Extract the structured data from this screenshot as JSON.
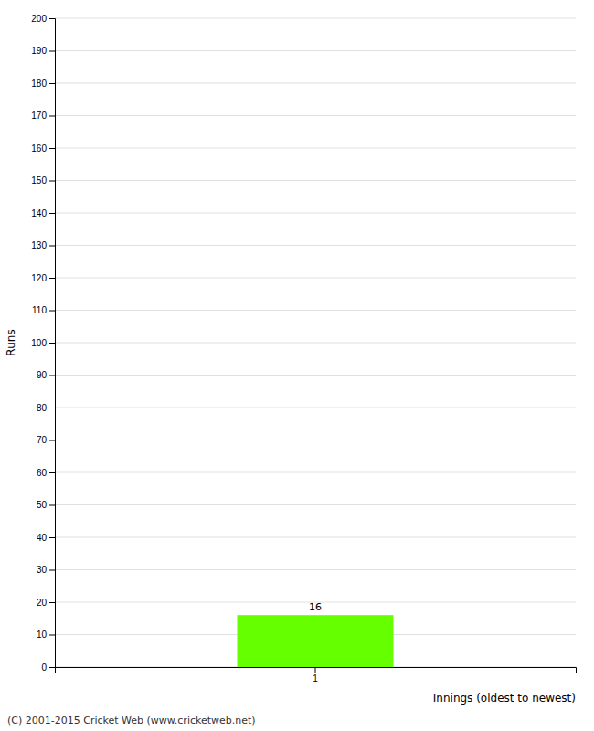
{
  "chart_data": {
    "type": "bar",
    "xlabel": "Innings (oldest to newest)",
    "ylabel": "Runs",
    "categories": [
      "1"
    ],
    "values": [
      16
    ],
    "color": "#66ff00",
    "ylim": [
      0,
      200
    ],
    "yticks": [
      0,
      10,
      20,
      30,
      40,
      50,
      60,
      70,
      80,
      90,
      100,
      110,
      120,
      130,
      140,
      150,
      160,
      170,
      180,
      190,
      200
    ],
    "grid": true,
    "data_labels": true,
    "footer": "(C) 2001-2015 Cricket Web (www.cricketweb.net)"
  }
}
